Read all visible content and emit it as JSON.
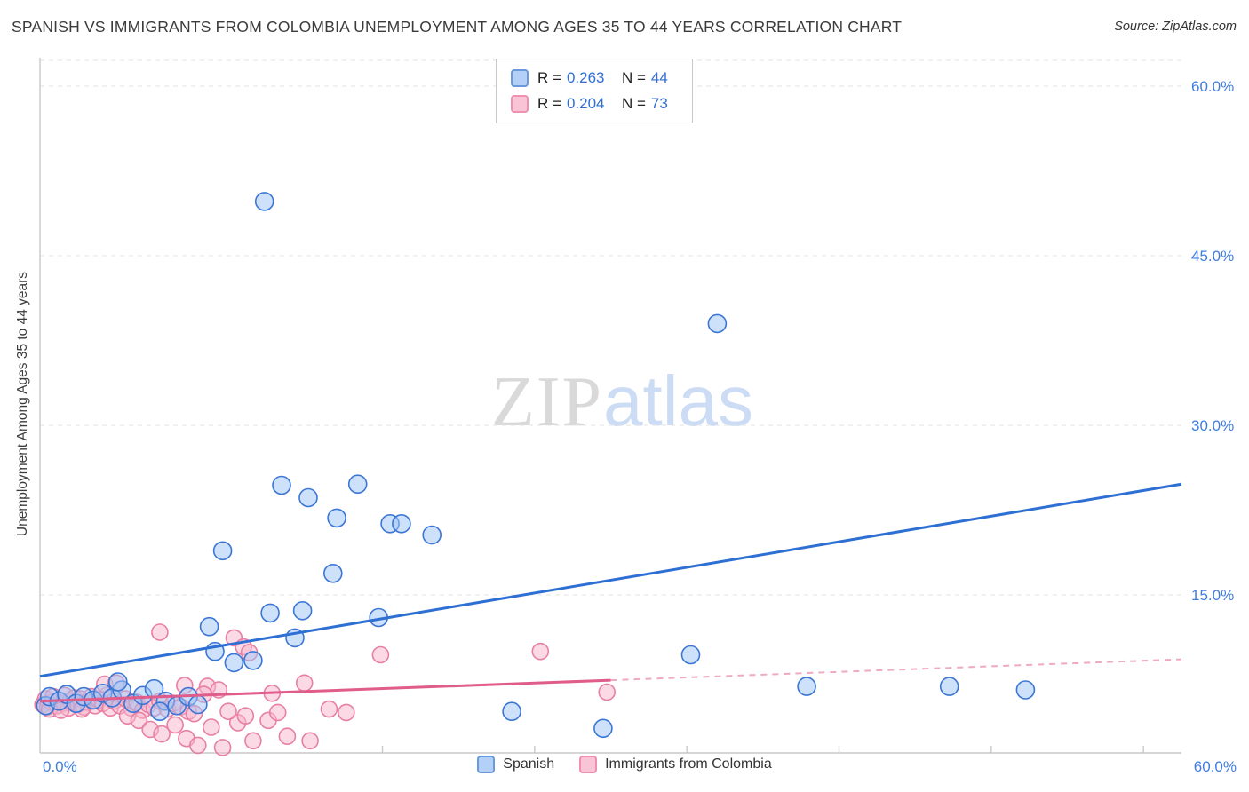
{
  "header": {
    "title": "SPANISH VS IMMIGRANTS FROM COLOMBIA UNEMPLOYMENT AMONG AGES 35 TO 44 YEARS CORRELATION CHART",
    "source": "Source: ZipAtlas.com"
  },
  "watermark": {
    "zip": "ZIP",
    "atlas": "atlas"
  },
  "legend_box": {
    "r_label": "R =",
    "n_label": "N ="
  },
  "colors": {
    "accent_blue": "#3f7de0",
    "spanish_marker": "#9ec3f5",
    "spanish_stroke": "#3b76d5",
    "colombia_marker": "#f7b6cb",
    "colombia_stroke": "#e87fa4",
    "grid": "#e3e3e3"
  },
  "chart_data": {
    "type": "scatter",
    "title": "Spanish vs Immigrants from Colombia Unemployment Among Ages 35 to 44 years",
    "xlabel": "",
    "ylabel": "Unemployment Among Ages 35 to 44 years",
    "xlim": [
      0,
      60
    ],
    "ylim": [
      0,
      62.5
    ],
    "grid": "horizontal-dashed",
    "legend_position": "top-center and bottom-center",
    "x_ticks": [
      {
        "value": 0,
        "label": "0.0%"
      },
      {
        "value": 60,
        "label": "60.0%"
      }
    ],
    "y_ticks": [
      {
        "value": 15,
        "label": "15.0%"
      },
      {
        "value": 30,
        "label": "30.0%"
      },
      {
        "value": 45,
        "label": "45.0%"
      },
      {
        "value": 60,
        "label": "60.0%"
      }
    ],
    "x_minor_ticks": [
      10,
      18,
      26,
      34,
      42,
      50,
      58
    ],
    "series": [
      {
        "name": "Spanish",
        "R": "0.263",
        "N": "44",
        "marker_fill": "#9ec3f5",
        "marker_stroke": "#3b76d5",
        "marker_r": 10,
        "trend_color": "#2e6fd3",
        "trend": {
          "x1": 0,
          "y1": 7.8,
          "x2": 60,
          "y2": 24.8,
          "solid_until": 60
        },
        "points": [
          [
            0.3,
            5.2
          ],
          [
            0.5,
            6.0
          ],
          [
            1.0,
            5.6
          ],
          [
            1.4,
            6.2
          ],
          [
            1.9,
            5.4
          ],
          [
            2.3,
            6.0
          ],
          [
            2.8,
            5.7
          ],
          [
            3.3,
            6.3
          ],
          [
            3.8,
            5.9
          ],
          [
            4.3,
            6.6
          ],
          [
            4.9,
            5.4
          ],
          [
            5.4,
            6.1
          ],
          [
            6.0,
            6.7
          ],
          [
            6.6,
            5.6
          ],
          [
            7.2,
            5.2
          ],
          [
            7.8,
            6.0
          ],
          [
            4.1,
            7.3
          ],
          [
            8.9,
            12.2
          ],
          [
            9.2,
            10.0
          ],
          [
            9.6,
            18.9
          ],
          [
            10.2,
            9.0
          ],
          [
            11.2,
            9.2
          ],
          [
            12.1,
            13.4
          ],
          [
            13.8,
            13.6
          ],
          [
            13.4,
            11.2
          ],
          [
            15.4,
            16.9
          ],
          [
            17.8,
            13.0
          ],
          [
            12.7,
            24.7
          ],
          [
            14.1,
            23.6
          ],
          [
            16.7,
            24.8
          ],
          [
            15.6,
            21.8
          ],
          [
            18.4,
            21.3
          ],
          [
            19.0,
            21.3
          ],
          [
            20.6,
            20.3
          ],
          [
            11.8,
            49.8
          ],
          [
            35.6,
            39.0
          ],
          [
            34.2,
            9.7
          ],
          [
            40.3,
            6.9
          ],
          [
            47.8,
            6.9
          ],
          [
            51.8,
            6.6
          ],
          [
            24.8,
            4.7
          ],
          [
            29.6,
            3.2
          ],
          [
            6.3,
            4.7
          ],
          [
            8.3,
            5.3
          ]
        ]
      },
      {
        "name": "Immigrants from Colombia",
        "R": "0.204",
        "N": "73",
        "marker_fill": "#f7b6cb",
        "marker_stroke": "#e87fa4",
        "marker_r": 9,
        "trend_color": "#e05c8a",
        "trend_dash_color": "#edaac2",
        "trend": {
          "x1": 0,
          "y1": 5.6,
          "x2": 60,
          "y2": 9.3,
          "solid_until": 30
        },
        "points": [
          [
            0.15,
            5.3
          ],
          [
            0.3,
            5.8
          ],
          [
            0.4,
            5.1
          ],
          [
            0.6,
            5.5
          ],
          [
            0.7,
            6.0
          ],
          [
            0.9,
            5.2
          ],
          [
            1.0,
            5.7
          ],
          [
            1.2,
            5.4
          ],
          [
            1.3,
            6.1
          ],
          [
            1.5,
            5.0
          ],
          [
            1.6,
            5.6
          ],
          [
            1.8,
            5.9
          ],
          [
            2.0,
            5.3
          ],
          [
            2.1,
            5.8
          ],
          [
            2.3,
            5.1
          ],
          [
            2.5,
            5.5
          ],
          [
            2.7,
            6.0
          ],
          [
            2.9,
            5.2
          ],
          [
            3.1,
            5.7
          ],
          [
            3.3,
            5.4
          ],
          [
            3.5,
            6.1
          ],
          [
            0.5,
            4.9
          ],
          [
            1.1,
            4.8
          ],
          [
            2.2,
            4.9
          ],
          [
            3.7,
            5.0
          ],
          [
            3.9,
            5.6
          ],
          [
            4.2,
            5.2
          ],
          [
            4.5,
            5.8
          ],
          [
            4.8,
            5.0
          ],
          [
            5.1,
            5.5
          ],
          [
            5.4,
            4.8
          ],
          [
            5.7,
            5.3
          ],
          [
            6.0,
            5.0
          ],
          [
            6.3,
            5.6
          ],
          [
            6.7,
            4.9
          ],
          [
            7.0,
            5.4
          ],
          [
            7.4,
            5.1
          ],
          [
            7.8,
            4.7
          ],
          [
            3.4,
            7.1
          ],
          [
            4.0,
            7.2
          ],
          [
            8.8,
            6.9
          ],
          [
            7.6,
            7.0
          ],
          [
            4.6,
            4.3
          ],
          [
            5.2,
            3.9
          ],
          [
            5.8,
            3.1
          ],
          [
            6.4,
            2.7
          ],
          [
            7.1,
            3.5
          ],
          [
            7.7,
            2.3
          ],
          [
            8.3,
            1.7
          ],
          [
            9.0,
            3.3
          ],
          [
            9.6,
            1.5
          ],
          [
            10.4,
            3.7
          ],
          [
            11.2,
            2.1
          ],
          [
            12.0,
            3.9
          ],
          [
            13.0,
            2.5
          ],
          [
            8.1,
            4.5
          ],
          [
            9.9,
            4.7
          ],
          [
            10.8,
            4.3
          ],
          [
            12.5,
            4.6
          ],
          [
            14.2,
            2.1
          ],
          [
            6.3,
            11.7
          ],
          [
            10.2,
            11.2
          ],
          [
            10.7,
            10.4
          ],
          [
            11.0,
            9.9
          ],
          [
            13.9,
            7.2
          ],
          [
            17.9,
            9.7
          ],
          [
            26.3,
            10.0
          ],
          [
            29.8,
            6.4
          ],
          [
            9.4,
            6.6
          ],
          [
            8.6,
            6.2
          ],
          [
            15.2,
            4.9
          ],
          [
            12.2,
            6.3
          ],
          [
            16.1,
            4.6
          ]
        ]
      }
    ]
  }
}
